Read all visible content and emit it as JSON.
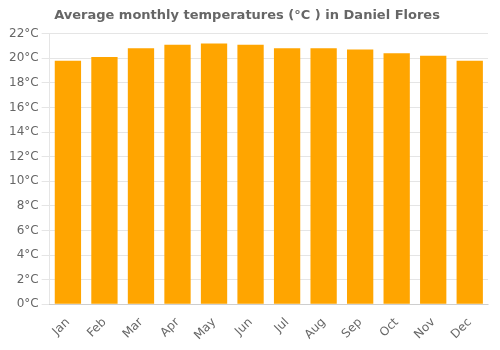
{
  "chart_data": {
    "type": "bar",
    "title": "Average monthly temperatures (°C ) in Daniel Flores",
    "categories": [
      "Jan",
      "Feb",
      "Mar",
      "Apr",
      "May",
      "Jun",
      "Jul",
      "Aug",
      "Sep",
      "Oct",
      "Nov",
      "Dec"
    ],
    "values": [
      19.8,
      20.1,
      20.8,
      21.1,
      21.2,
      21.1,
      20.8,
      20.8,
      20.7,
      20.4,
      20.2,
      19.8
    ],
    "color": "#FFA500",
    "ylim": [
      0,
      22
    ],
    "yticks": [
      {
        "value": 0,
        "label": "0°C"
      },
      {
        "value": 2,
        "label": "2°C"
      },
      {
        "value": 4,
        "label": "4°C"
      },
      {
        "value": 6,
        "label": "6°C"
      },
      {
        "value": 8,
        "label": "8°C"
      },
      {
        "value": 10,
        "label": "10°C"
      },
      {
        "value": 12,
        "label": "12°C"
      },
      {
        "value": 14,
        "label": "14°C"
      },
      {
        "value": 16,
        "label": "16°C"
      },
      {
        "value": 18,
        "label": "18°C"
      },
      {
        "value": 20,
        "label": "20°C"
      },
      {
        "value": 22,
        "label": "22°C"
      }
    ],
    "grid": true
  }
}
